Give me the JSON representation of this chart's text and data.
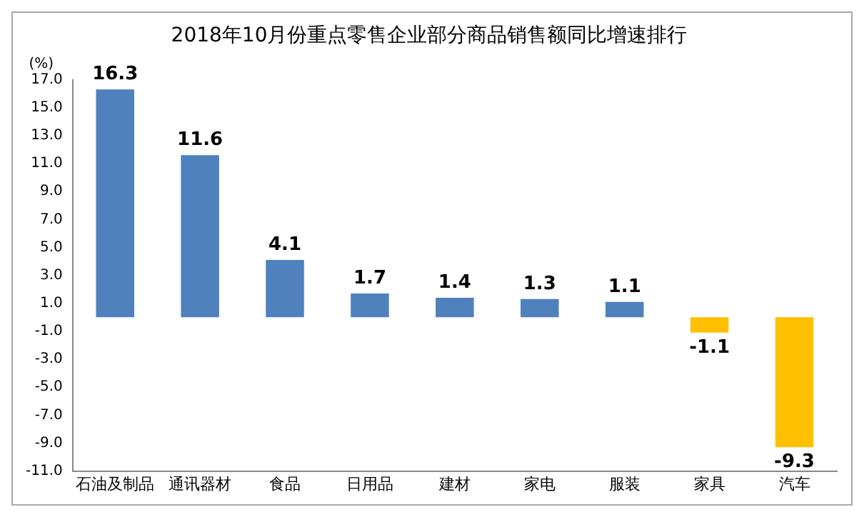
{
  "chart_data": {
    "type": "bar",
    "title": "2018年10月份重点零售企业部分商品销售额同比增速排行",
    "ylabel": "(%)",
    "categories": [
      "石油及制品",
      "通讯器材",
      "食品",
      "日用品",
      "建材",
      "家电",
      "服装",
      "家具",
      "汽车"
    ],
    "values": [
      16.3,
      11.6,
      4.1,
      1.7,
      1.4,
      1.3,
      1.1,
      -1.1,
      -9.3
    ],
    "colors": [
      "#4f81bd",
      "#4f81bd",
      "#4f81bd",
      "#4f81bd",
      "#4f81bd",
      "#4f81bd",
      "#4f81bd",
      "#ffc000",
      "#ffc000"
    ],
    "ylim": [
      -11,
      17
    ],
    "yticks": [
      {
        "value": -11,
        "label": "-11.0"
      },
      {
        "value": -9,
        "label": "-9.0"
      },
      {
        "value": -7,
        "label": "-7.0"
      },
      {
        "value": -5,
        "label": "-5.0"
      },
      {
        "value": -3,
        "label": "-3.0"
      },
      {
        "value": -1,
        "label": "-1.0"
      },
      {
        "value": 1,
        "label": "1.0"
      },
      {
        "value": 3,
        "label": "3.0"
      },
      {
        "value": 5,
        "label": "5.0"
      },
      {
        "value": 7,
        "label": "7.0"
      },
      {
        "value": 9,
        "label": "9.0"
      },
      {
        "value": 11,
        "label": "11.0"
      },
      {
        "value": 13,
        "label": "13.0"
      },
      {
        "value": 15,
        "label": "15.0"
      },
      {
        "value": 17,
        "label": "17.0"
      }
    ],
    "grid": false,
    "legend": false,
    "data_labels": true
  }
}
